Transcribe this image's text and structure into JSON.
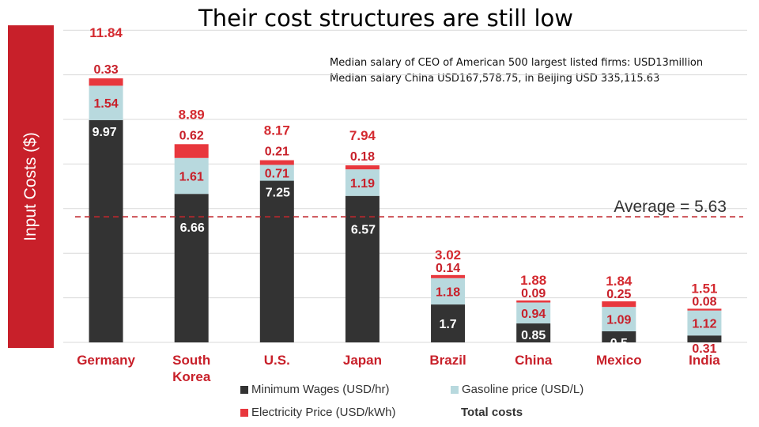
{
  "title": "Their cost structures are still low",
  "note": {
    "line1": "Median salary of CEO of American 500 largest listed firms: USD13million",
    "line2": "Median salary China USD167,578.75, in Beijing USD 335,115.63"
  },
  "chart_data": {
    "type": "bar",
    "stacked": true,
    "ylabel": "Input Costs ($)",
    "ylim": [
      0,
      14
    ],
    "grid": true,
    "categories": [
      "Germany",
      "South Korea",
      "U.S.",
      "Japan",
      "Brazil",
      "China",
      "Mexico",
      "India"
    ],
    "category_lines": [
      [
        "Germany"
      ],
      [
        "South",
        "Korea"
      ],
      [
        "U.S."
      ],
      [
        "Japan"
      ],
      [
        "Brazil"
      ],
      [
        "China"
      ],
      [
        "Mexico"
      ],
      [
        "India"
      ]
    ],
    "series": [
      {
        "name": "Minimum Wages (USD/hr)",
        "color": "#333333",
        "values": [
          9.97,
          6.66,
          7.25,
          6.57,
          1.7,
          0.85,
          0.5,
          0.31
        ]
      },
      {
        "name": "Gasoline price (USD/L)",
        "color": "#b8d9de",
        "values": [
          1.54,
          1.61,
          0.71,
          1.19,
          1.18,
          0.94,
          1.09,
          1.12
        ]
      },
      {
        "name": "Electricity Price (USD/kWh)",
        "color": "#e8373d",
        "values": [
          0.33,
          0.62,
          0.21,
          0.18,
          0.14,
          0.09,
          0.25,
          0.08
        ]
      }
    ],
    "totals_label": "Total costs",
    "totals": [
      11.84,
      8.89,
      8.17,
      7.94,
      3.02,
      1.88,
      1.84,
      1.51
    ],
    "labels": {
      "wages": [
        "9.97",
        "6.66",
        "7.25",
        "6.57",
        "1.7",
        "0.85",
        "0.5",
        "0.31"
      ],
      "gasoline": [
        "1.54",
        "1.61",
        "0.71",
        "1.19",
        "1.18",
        "0.94",
        "1.09",
        "1.12"
      ],
      "electricity": [
        "0.33",
        "0.62",
        "0.21",
        "0.18",
        "0.14",
        "0.09",
        "0.25",
        "0.08"
      ],
      "totals": [
        "11.84",
        "8.89",
        "8.17",
        "7.94",
        "3.02",
        "1.88",
        "1.84",
        "1.51"
      ]
    },
    "average": {
      "value": 5.63,
      "label": "Average = 5.63",
      "color": "#c0272d"
    },
    "colors": {
      "accent": "#c8202a",
      "category_label": "#c8202a",
      "total_label": "#d42a30"
    }
  }
}
